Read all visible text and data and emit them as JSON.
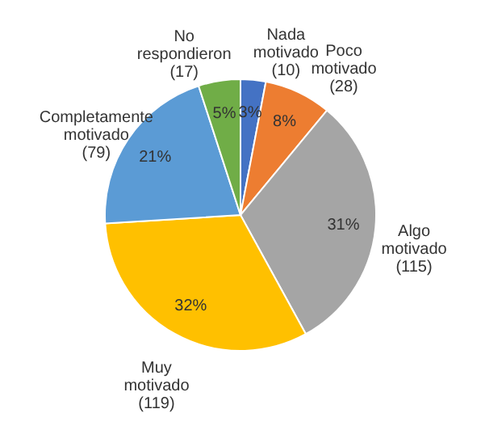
{
  "chart_data": {
    "type": "pie",
    "categories": [
      "Nada motivado (10)",
      "Poco motivado (28)",
      "Algo motivado (115)",
      "Muy motivado (119)",
      "Completamente motivado (79)",
      "No respondieron (17)"
    ],
    "values": [
      3,
      8,
      31,
      32,
      21,
      5
    ],
    "value_labels": [
      "3%",
      "8%",
      "31%",
      "32%",
      "21%",
      "5%"
    ],
    "colors": [
      "#4472c4",
      "#ed7d31",
      "#a5a5a5",
      "#ffc000",
      "#5b9bd5",
      "#70ad47"
    ],
    "legend": false
  }
}
